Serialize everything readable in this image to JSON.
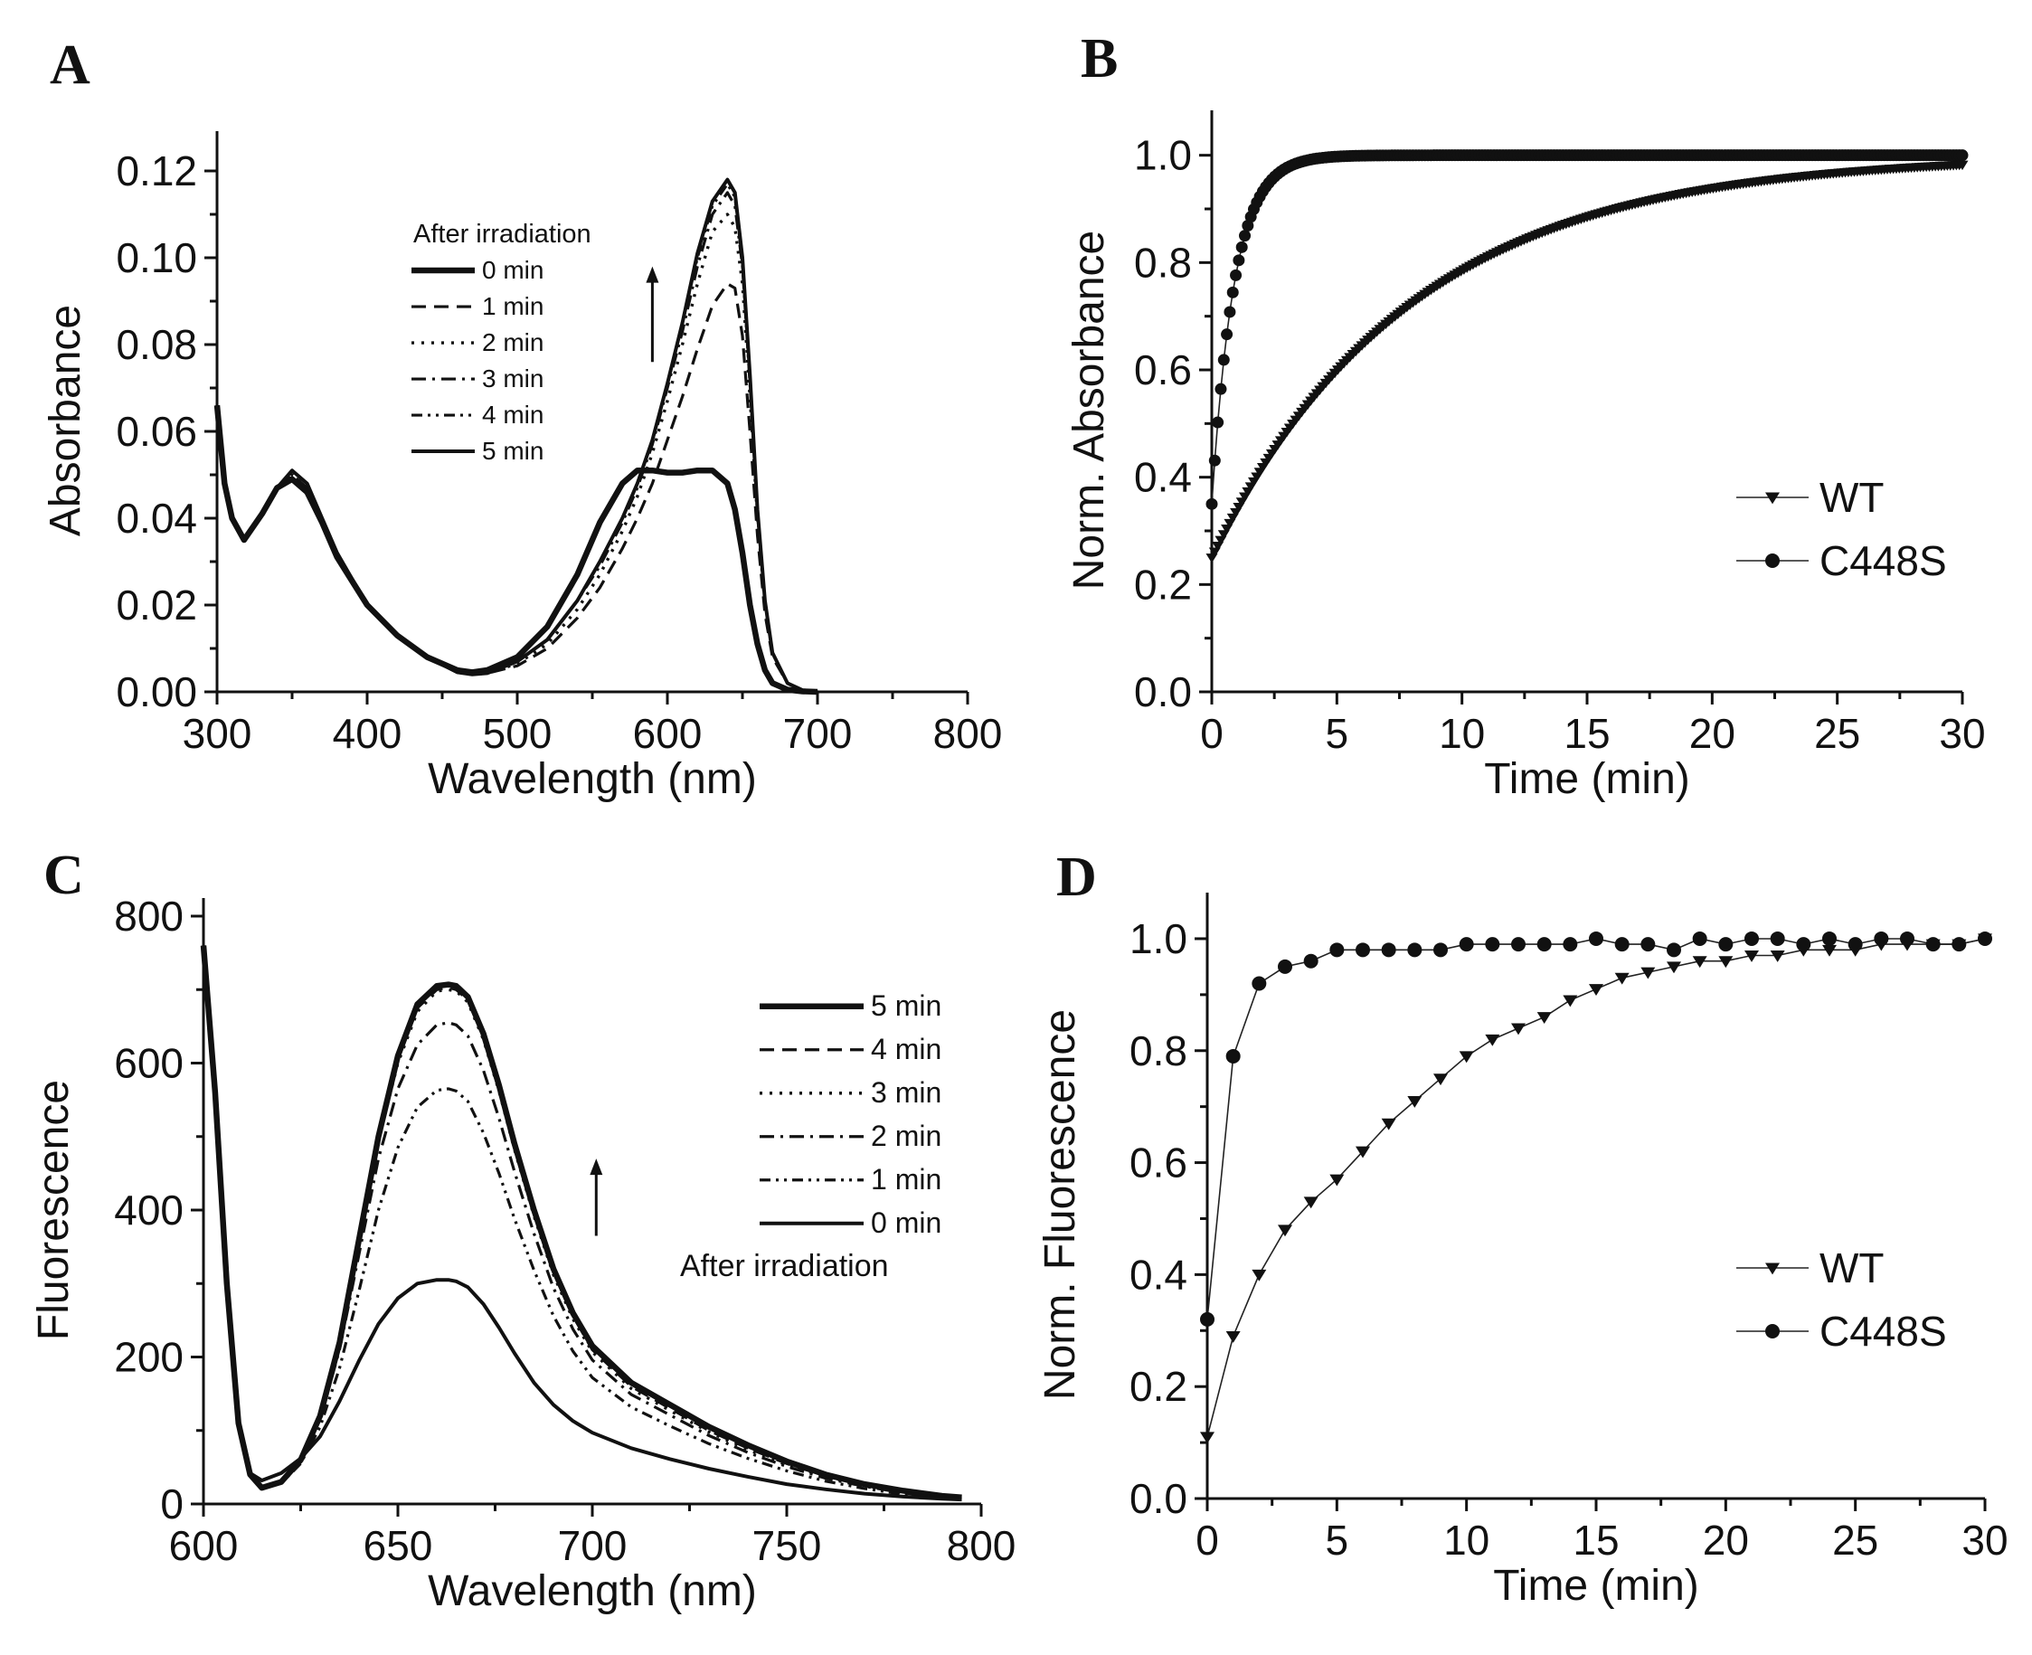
{
  "chart_data": [
    {
      "panel": "A",
      "type": "line",
      "xlabel": "Wavelength (nm)",
      "ylabel": "Absorbance",
      "xlim": [
        300,
        800
      ],
      "ylim": [
        0,
        0.125
      ],
      "xticks": [
        300,
        400,
        500,
        600,
        700,
        800
      ],
      "yticks": [
        0.0,
        0.02,
        0.04,
        0.06,
        0.08,
        0.1,
        0.12
      ],
      "ytick_decimals": 2,
      "legend_title": "After irradiation",
      "x": [
        300,
        305,
        310,
        318,
        330,
        340,
        350,
        360,
        370,
        380,
        400,
        420,
        440,
        460,
        470,
        480,
        500,
        520,
        540,
        555,
        570,
        580,
        590,
        600,
        610,
        620,
        630,
        640,
        645,
        650,
        655,
        660,
        665,
        670,
        680,
        690,
        700
      ],
      "series": [
        {
          "name": "0 min",
          "style": "solid-thick",
          "values": [
            0.066,
            0.048,
            0.04,
            0.035,
            0.041,
            0.047,
            0.049,
            0.046,
            0.039,
            0.031,
            0.02,
            0.013,
            0.008,
            0.005,
            0.0045,
            0.005,
            0.008,
            0.015,
            0.027,
            0.039,
            0.048,
            0.051,
            0.051,
            0.0505,
            0.0505,
            0.051,
            0.051,
            0.048,
            0.042,
            0.032,
            0.02,
            0.011,
            0.005,
            0.002,
            0.0005,
            0.0001,
            0.0
          ]
        },
        {
          "name": "1 min",
          "style": "dash",
          "values": [
            0.066,
            0.048,
            0.04,
            0.035,
            0.041,
            0.047,
            0.05,
            0.047,
            0.04,
            0.032,
            0.02,
            0.013,
            0.008,
            0.0045,
            0.004,
            0.0043,
            0.006,
            0.01,
            0.017,
            0.024,
            0.033,
            0.04,
            0.048,
            0.058,
            0.068,
            0.079,
            0.089,
            0.094,
            0.093,
            0.082,
            0.06,
            0.036,
            0.018,
            0.008,
            0.002,
            0.0004,
            0.0
          ]
        },
        {
          "name": "2 min",
          "style": "dot",
          "values": [
            0.066,
            0.048,
            0.04,
            0.035,
            0.041,
            0.047,
            0.05,
            0.047,
            0.04,
            0.032,
            0.02,
            0.013,
            0.008,
            0.0045,
            0.004,
            0.0043,
            0.0065,
            0.011,
            0.019,
            0.027,
            0.037,
            0.045,
            0.055,
            0.067,
            0.08,
            0.094,
            0.106,
            0.11,
            0.107,
            0.094,
            0.068,
            0.04,
            0.02,
            0.009,
            0.002,
            0.0004,
            0.0
          ]
        },
        {
          "name": "3 min",
          "style": "dashdot",
          "values": [
            0.066,
            0.048,
            0.04,
            0.035,
            0.041,
            0.047,
            0.051,
            0.048,
            0.04,
            0.032,
            0.02,
            0.013,
            0.008,
            0.0045,
            0.004,
            0.0043,
            0.007,
            0.012,
            0.021,
            0.029,
            0.039,
            0.047,
            0.057,
            0.07,
            0.083,
            0.098,
            0.11,
            0.115,
            0.112,
            0.098,
            0.071,
            0.041,
            0.021,
            0.009,
            0.002,
            0.0004,
            0.0
          ]
        },
        {
          "name": "4 min",
          "style": "dashdotdot",
          "values": [
            0.066,
            0.048,
            0.04,
            0.035,
            0.041,
            0.047,
            0.051,
            0.048,
            0.04,
            0.032,
            0.02,
            0.013,
            0.008,
            0.0045,
            0.004,
            0.0043,
            0.007,
            0.012,
            0.021,
            0.03,
            0.04,
            0.048,
            0.058,
            0.071,
            0.085,
            0.1,
            0.112,
            0.117,
            0.114,
            0.099,
            0.072,
            0.042,
            0.021,
            0.009,
            0.002,
            0.0004,
            0.0
          ]
        },
        {
          "name": "5 min",
          "style": "solid",
          "values": [
            0.066,
            0.048,
            0.04,
            0.035,
            0.041,
            0.047,
            0.051,
            0.048,
            0.04,
            0.032,
            0.02,
            0.013,
            0.008,
            0.0045,
            0.004,
            0.0043,
            0.007,
            0.012,
            0.021,
            0.03,
            0.04,
            0.048,
            0.058,
            0.071,
            0.085,
            0.101,
            0.113,
            0.118,
            0.115,
            0.1,
            0.073,
            0.042,
            0.021,
            0.009,
            0.002,
            0.0004,
            0.0
          ]
        }
      ],
      "arrow": {
        "x": 590,
        "y_from": 0.076,
        "y_to": 0.098
      }
    },
    {
      "panel": "B",
      "type": "scatter",
      "xlabel": "Time (min)",
      "ylabel": "Norm. Absorbance",
      "xlim": [
        0,
        30
      ],
      "ylim": [
        0,
        1.05
      ],
      "xticks": [
        0,
        5,
        10,
        15,
        20,
        25,
        30
      ],
      "yticks": [
        0.0,
        0.2,
        0.4,
        0.6,
        0.8,
        1.0
      ],
      "ytick_decimals": 1,
      "series": [
        {
          "name": "WT",
          "marker": "triangle-down",
          "model": {
            "kind": "exp",
            "start": 0.25,
            "end": 1.0,
            "tau": 8.0
          },
          "t_start": 0,
          "t_end": 30,
          "step": 0.12
        },
        {
          "name": "C448S",
          "marker": "circle",
          "model": {
            "kind": "exp",
            "start": 0.35,
            "end": 1.0,
            "tau": 0.9
          },
          "t_start": 0,
          "t_end": 30,
          "step": 0.12
        }
      ]
    },
    {
      "panel": "C",
      "type": "line",
      "xlabel": "Wavelength (nm)",
      "ylabel": "Fluorescence",
      "xlim": [
        600,
        800
      ],
      "ylim": [
        0,
        800
      ],
      "xticks": [
        600,
        650,
        700,
        750,
        800
      ],
      "yticks": [
        0,
        200,
        400,
        600,
        800
      ],
      "ytick_decimals": 0,
      "legend_title": "After irradiation",
      "x": [
        600,
        603,
        606,
        609,
        612,
        615,
        620,
        625,
        630,
        635,
        640,
        645,
        650,
        655,
        660,
        663,
        665,
        668,
        672,
        676,
        680,
        685,
        690,
        695,
        700,
        710,
        720,
        730,
        740,
        750,
        760,
        770,
        780,
        790,
        795
      ],
      "series": [
        {
          "name": "5 min",
          "style": "solid-thick",
          "values": [
            760,
            560,
            300,
            110,
            40,
            22,
            30,
            60,
            120,
            220,
            360,
            500,
            610,
            680,
            705,
            707,
            705,
            690,
            640,
            570,
            490,
            400,
            320,
            260,
            215,
            165,
            135,
            105,
            80,
            58,
            40,
            27,
            18,
            11,
            9
          ]
        },
        {
          "name": "4 min",
          "style": "dash",
          "values": [
            760,
            560,
            300,
            110,
            40,
            22,
            30,
            60,
            120,
            220,
            360,
            500,
            605,
            675,
            700,
            703,
            700,
            686,
            636,
            566,
            486,
            396,
            316,
            256,
            210,
            160,
            130,
            100,
            76,
            55,
            38,
            26,
            17,
            10,
            8
          ]
        },
        {
          "name": "3 min",
          "style": "dot",
          "values": [
            760,
            560,
            300,
            110,
            40,
            22,
            30,
            60,
            118,
            215,
            355,
            495,
            600,
            670,
            698,
            700,
            698,
            683,
            632,
            562,
            482,
            392,
            312,
            252,
            207,
            157,
            127,
            98,
            74,
            53,
            37,
            25,
            16,
            10,
            8
          ]
        },
        {
          "name": "2 min",
          "style": "dashdot",
          "values": [
            760,
            560,
            300,
            110,
            40,
            22,
            30,
            60,
            115,
            210,
            340,
            470,
            565,
            625,
            652,
            655,
            652,
            637,
            590,
            525,
            452,
            368,
            294,
            238,
            196,
            149,
            121,
            93,
            70,
            51,
            35,
            24,
            15,
            9,
            7
          ]
        },
        {
          "name": "1 min",
          "style": "dashdotdot",
          "values": [
            760,
            560,
            300,
            110,
            40,
            22,
            28,
            55,
            105,
            185,
            290,
            400,
            485,
            540,
            563,
            565,
            562,
            548,
            505,
            450,
            388,
            318,
            256,
            208,
            172,
            132,
            106,
            82,
            62,
            45,
            31,
            21,
            13,
            8,
            6
          ]
        },
        {
          "name": "0 min",
          "style": "solid",
          "values": [
            760,
            560,
            300,
            110,
            42,
            32,
            42,
            62,
            92,
            140,
            195,
            245,
            280,
            300,
            305,
            305,
            303,
            295,
            272,
            240,
            205,
            165,
            135,
            113,
            97,
            76,
            61,
            48,
            37,
            27,
            20,
            14,
            10,
            7,
            6
          ]
        }
      ],
      "arrow": {
        "x": 701,
        "y_from": 365,
        "y_to": 470
      }
    },
    {
      "panel": "D",
      "type": "scatter",
      "xlabel": "Time (min)",
      "ylabel": "Norm. Fluorescence",
      "xlim": [
        0,
        30
      ],
      "ylim": [
        0,
        1.05
      ],
      "xticks": [
        0,
        5,
        10,
        15,
        20,
        25,
        30
      ],
      "yticks": [
        0.0,
        0.2,
        0.4,
        0.6,
        0.8,
        1.0
      ],
      "ytick_decimals": 1,
      "series": [
        {
          "name": "WT",
          "marker": "triangle-down",
          "x": [
            0,
            1,
            2,
            3,
            4,
            5,
            6,
            7,
            8,
            9,
            10,
            11,
            12,
            13,
            14,
            15,
            16,
            17,
            18,
            19,
            20,
            21,
            22,
            23,
            24,
            25,
            26,
            27,
            28,
            29,
            30
          ],
          "values": [
            0.11,
            0.29,
            0.4,
            0.48,
            0.53,
            0.57,
            0.62,
            0.67,
            0.71,
            0.75,
            0.79,
            0.82,
            0.84,
            0.86,
            0.89,
            0.91,
            0.93,
            0.94,
            0.95,
            0.96,
            0.96,
            0.97,
            0.97,
            0.98,
            0.98,
            0.98,
            0.99,
            0.99,
            0.99,
            0.99,
            1.0
          ]
        },
        {
          "name": "C448S",
          "marker": "circle",
          "x": [
            0,
            1,
            2,
            3,
            4,
            5,
            6,
            7,
            8,
            9,
            10,
            11,
            12,
            13,
            14,
            15,
            16,
            17,
            18,
            19,
            20,
            21,
            22,
            23,
            24,
            25,
            26,
            27,
            28,
            29,
            30
          ],
          "values": [
            0.32,
            0.79,
            0.92,
            0.95,
            0.96,
            0.98,
            0.98,
            0.98,
            0.98,
            0.98,
            0.99,
            0.99,
            0.99,
            0.99,
            0.99,
            1.0,
            0.99,
            0.99,
            0.98,
            1.0,
            0.99,
            1.0,
            1.0,
            0.99,
            1.0,
            0.99,
            1.0,
            1.0,
            0.99,
            0.99,
            1.0
          ]
        }
      ]
    }
  ]
}
